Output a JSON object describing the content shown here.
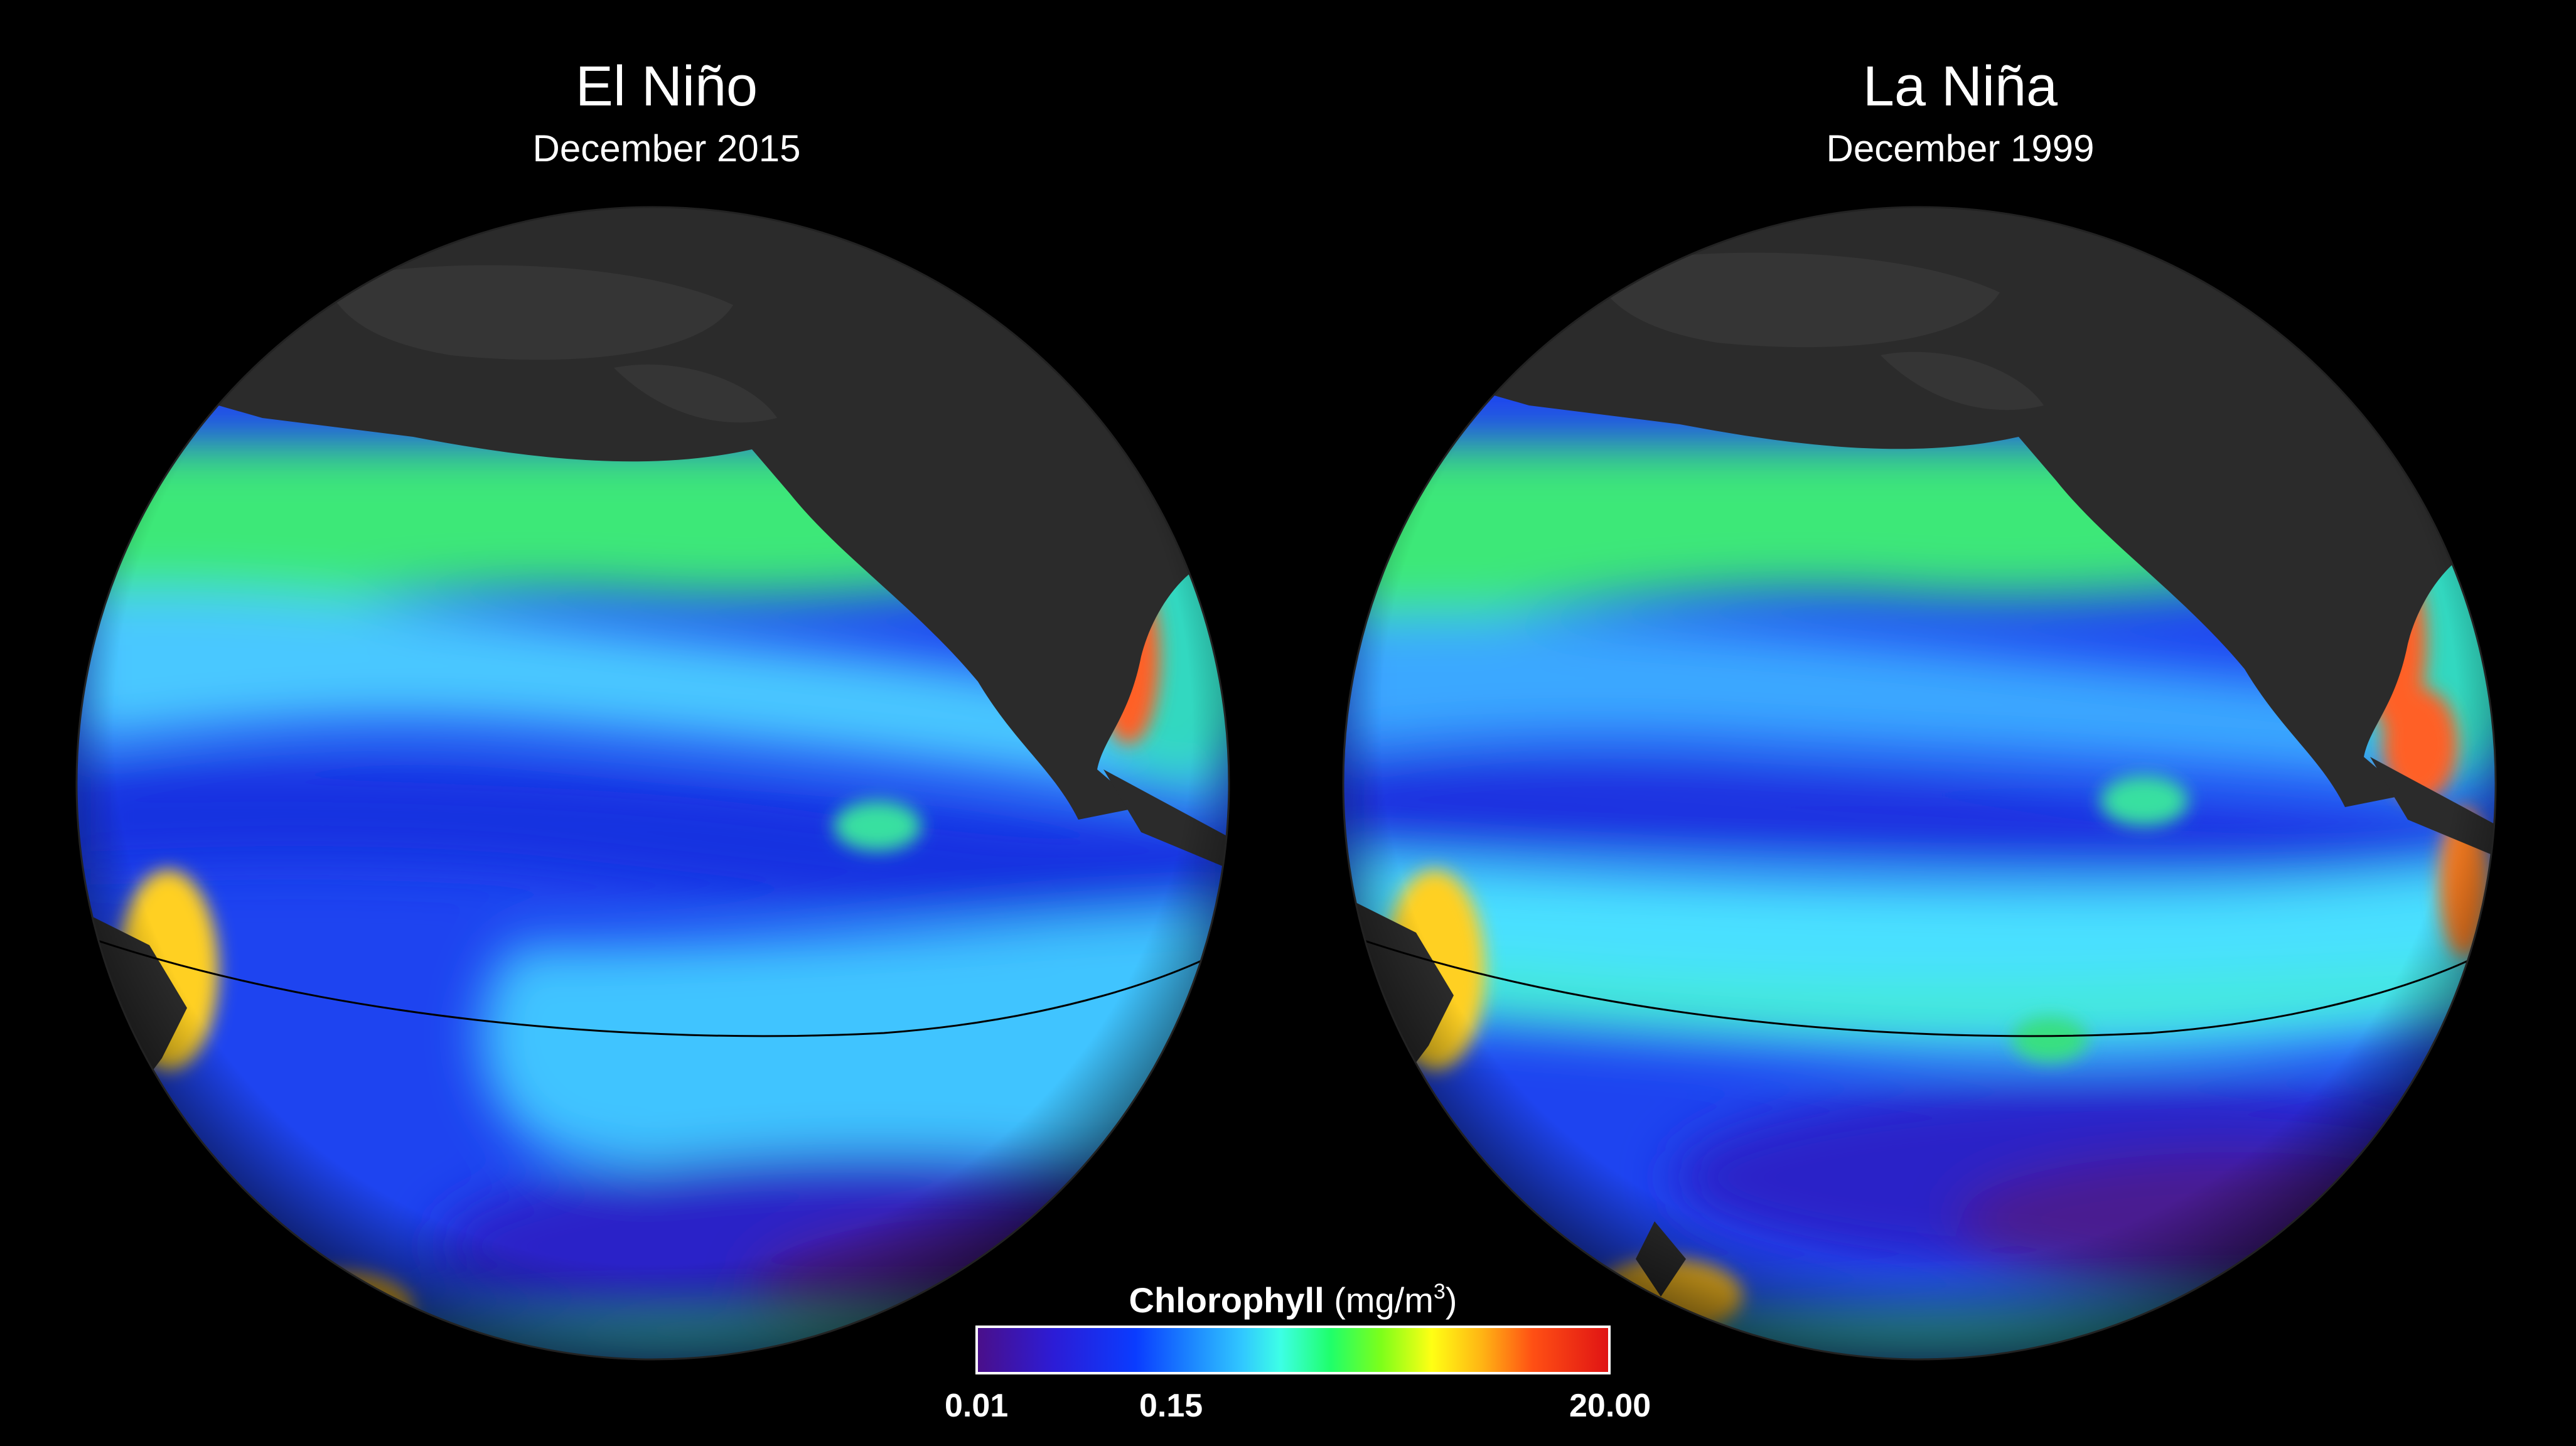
{
  "panels": [
    {
      "title": "El Niño",
      "subtitle": "December 2015"
    },
    {
      "title": "La Niña",
      "subtitle": "December 1999"
    }
  ],
  "legend": {
    "label": "Chlorophyll",
    "unit_prefix": "(mg/m",
    "unit_exponent": "3",
    "unit_suffix": ")",
    "ticks": [
      "0.01",
      "0.15",
      "20.00"
    ],
    "colors": [
      "#4a0f8a",
      "#0a3cff",
      "#31c8ff",
      "#1fff6a",
      "#ffff14",
      "#ff5014",
      "#e01414"
    ]
  },
  "colors": {
    "background": "#000000",
    "land": "#2a2a2a",
    "oligotrophic": "#1a3cf0",
    "subtropical_gyre": "#3a1aa0",
    "moderate": "#38c0ff",
    "high": "#28e070",
    "coastal_peak": "#ff4020",
    "equator_line": "#000000"
  }
}
